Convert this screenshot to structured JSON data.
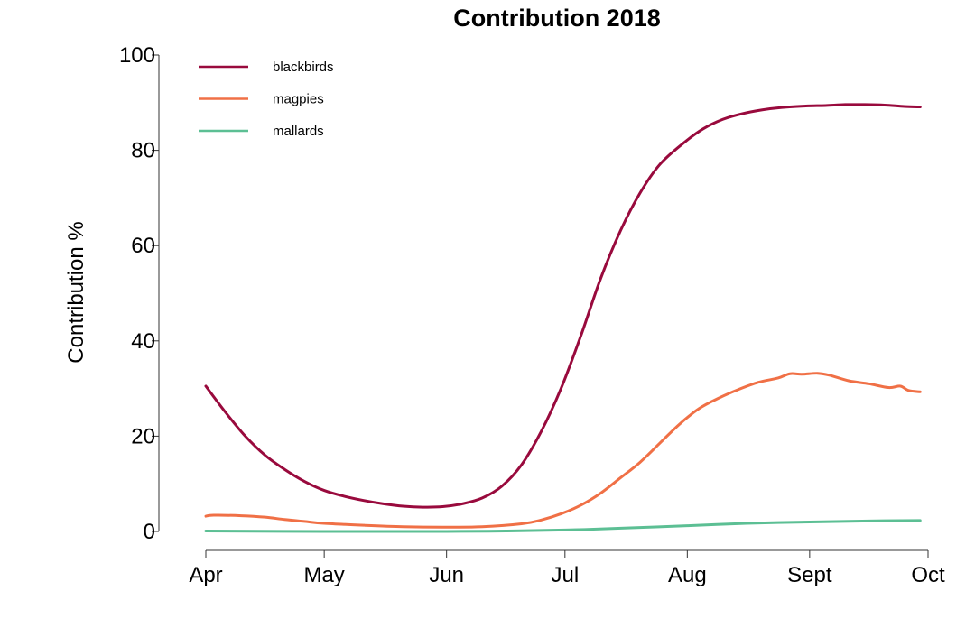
{
  "chart_data": {
    "type": "line",
    "title": "Contribution 2018",
    "xlabel": "",
    "ylabel": "Contribution %",
    "ylim": [
      0,
      100
    ],
    "xlim": [
      "2018-04-01",
      "2018-10-01"
    ],
    "grid": false,
    "legend_position": "top-left",
    "y_ticks": [
      0,
      20,
      40,
      60,
      80,
      100
    ],
    "x_ticks": [
      {
        "label": "Apr",
        "date": "2018-04-01"
      },
      {
        "label": "May",
        "date": "2018-05-01"
      },
      {
        "label": "Jun",
        "date": "2018-06-01"
      },
      {
        "label": "Jul",
        "date": "2018-07-01"
      },
      {
        "label": "Aug",
        "date": "2018-08-01"
      },
      {
        "label": "Sept",
        "date": "2018-09-01"
      },
      {
        "label": "Oct",
        "date": "2018-10-01"
      }
    ],
    "series": [
      {
        "name": "blackbirds",
        "color": "#990a3d",
        "points": [
          [
            "2018-04-01",
            30.5
          ],
          [
            "2018-04-06",
            25.0
          ],
          [
            "2018-04-11",
            20.0
          ],
          [
            "2018-04-16",
            16.0
          ],
          [
            "2018-04-21",
            13.0
          ],
          [
            "2018-04-26",
            10.5
          ],
          [
            "2018-05-01",
            8.6
          ],
          [
            "2018-05-06",
            7.4
          ],
          [
            "2018-05-11",
            6.5
          ],
          [
            "2018-05-16",
            5.8
          ],
          [
            "2018-05-21",
            5.3
          ],
          [
            "2018-05-26",
            5.1
          ],
          [
            "2018-05-31",
            5.2
          ],
          [
            "2018-06-05",
            5.8
          ],
          [
            "2018-06-10",
            7.0
          ],
          [
            "2018-06-15",
            9.5
          ],
          [
            "2018-06-20",
            14.0
          ],
          [
            "2018-06-25",
            21.0
          ],
          [
            "2018-06-30",
            30.0
          ],
          [
            "2018-07-05",
            41.0
          ],
          [
            "2018-07-10",
            53.0
          ],
          [
            "2018-07-15",
            63.0
          ],
          [
            "2018-07-20",
            71.0
          ],
          [
            "2018-07-25",
            77.0
          ],
          [
            "2018-07-31",
            81.5
          ],
          [
            "2018-08-05",
            84.5
          ],
          [
            "2018-08-10",
            86.5
          ],
          [
            "2018-08-15",
            87.7
          ],
          [
            "2018-08-20",
            88.5
          ],
          [
            "2018-08-25",
            89.0
          ],
          [
            "2018-08-31",
            89.3
          ],
          [
            "2018-09-05",
            89.4
          ],
          [
            "2018-09-10",
            89.6
          ],
          [
            "2018-09-15",
            89.6
          ],
          [
            "2018-09-20",
            89.5
          ],
          [
            "2018-09-25",
            89.2
          ],
          [
            "2018-09-29",
            89.1
          ]
        ]
      },
      {
        "name": "magpies",
        "color": "#f07046",
        "points": [
          [
            "2018-04-01",
            3.2
          ],
          [
            "2018-04-03",
            3.4
          ],
          [
            "2018-04-10",
            3.3
          ],
          [
            "2018-04-16",
            3.0
          ],
          [
            "2018-04-21",
            2.5
          ],
          [
            "2018-04-26",
            2.1
          ],
          [
            "2018-05-01",
            1.7
          ],
          [
            "2018-05-11",
            1.3
          ],
          [
            "2018-05-21",
            1.0
          ],
          [
            "2018-05-31",
            0.9
          ],
          [
            "2018-06-10",
            1.0
          ],
          [
            "2018-06-20",
            1.6
          ],
          [
            "2018-06-25",
            2.4
          ],
          [
            "2018-06-30",
            3.7
          ],
          [
            "2018-07-05",
            5.5
          ],
          [
            "2018-07-10",
            8.0
          ],
          [
            "2018-07-15",
            11.2
          ],
          [
            "2018-07-20",
            14.5
          ],
          [
            "2018-07-25",
            18.5
          ],
          [
            "2018-07-30",
            22.5
          ],
          [
            "2018-08-04",
            25.8
          ],
          [
            "2018-08-09",
            28.0
          ],
          [
            "2018-08-14",
            29.8
          ],
          [
            "2018-08-19",
            31.3
          ],
          [
            "2018-08-24",
            32.2
          ],
          [
            "2018-08-27",
            33.1
          ],
          [
            "2018-08-30",
            33.0
          ],
          [
            "2018-09-03",
            33.2
          ],
          [
            "2018-09-06",
            32.8
          ],
          [
            "2018-09-11",
            31.6
          ],
          [
            "2018-09-16",
            31.0
          ],
          [
            "2018-09-21",
            30.2
          ],
          [
            "2018-09-24",
            30.5
          ],
          [
            "2018-09-26",
            29.6
          ],
          [
            "2018-09-29",
            29.3
          ]
        ]
      },
      {
        "name": "mallards",
        "color": "#5cbf94",
        "points": [
          [
            "2018-04-01",
            0.1
          ],
          [
            "2018-05-01",
            0.0
          ],
          [
            "2018-06-01",
            0.0
          ],
          [
            "2018-06-16",
            0.1
          ],
          [
            "2018-07-01",
            0.3
          ],
          [
            "2018-07-16",
            0.7
          ],
          [
            "2018-08-01",
            1.2
          ],
          [
            "2018-08-16",
            1.7
          ],
          [
            "2018-09-01",
            2.0
          ],
          [
            "2018-09-16",
            2.2
          ],
          [
            "2018-09-29",
            2.3
          ]
        ]
      }
    ]
  }
}
